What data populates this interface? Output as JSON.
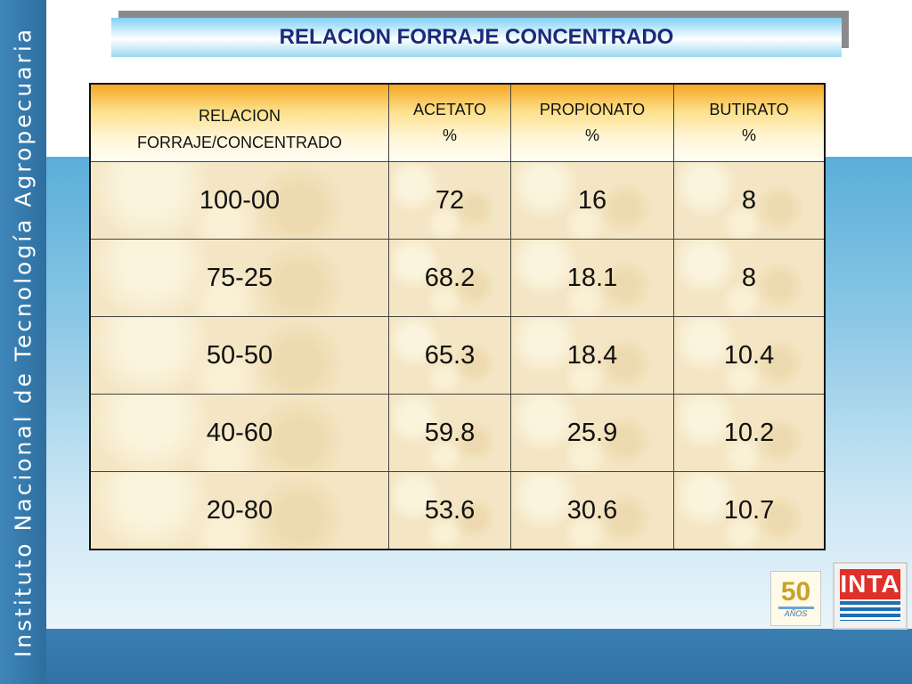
{
  "sidebar": {
    "text": "Instituto Nacional de Tecnología Agropecuaria"
  },
  "title": "RELACION FORRAJE CONCENTRADO",
  "table": {
    "headers": [
      {
        "line1": "RELACION FORRAJE/CONCENTRADO",
        "line2": ""
      },
      {
        "line1": "ACETATO",
        "line2": "%"
      },
      {
        "line1": "PROPIONATO",
        "line2": "%"
      },
      {
        "line1": "BUTIRATO",
        "line2": "%"
      }
    ],
    "rows": [
      [
        "100-00",
        "72",
        "16",
        "8"
      ],
      [
        "75-25",
        "68.2",
        "18.1",
        "8"
      ],
      [
        "50-50",
        "65.3",
        "18.4",
        "10.4"
      ],
      [
        "40-60",
        "59.8",
        "25.9",
        "10.2"
      ],
      [
        "20-80",
        "53.6",
        "30.6",
        "10.7"
      ]
    ]
  },
  "logos": {
    "anniversary_number": "50",
    "anniversary_word": "AÑOS",
    "inta_text": "INTA"
  },
  "colors": {
    "title_text": "#1a2a7a",
    "header_orange": "#f6a623",
    "side_band": "#3478aa",
    "inta_red": "#e0302a"
  }
}
